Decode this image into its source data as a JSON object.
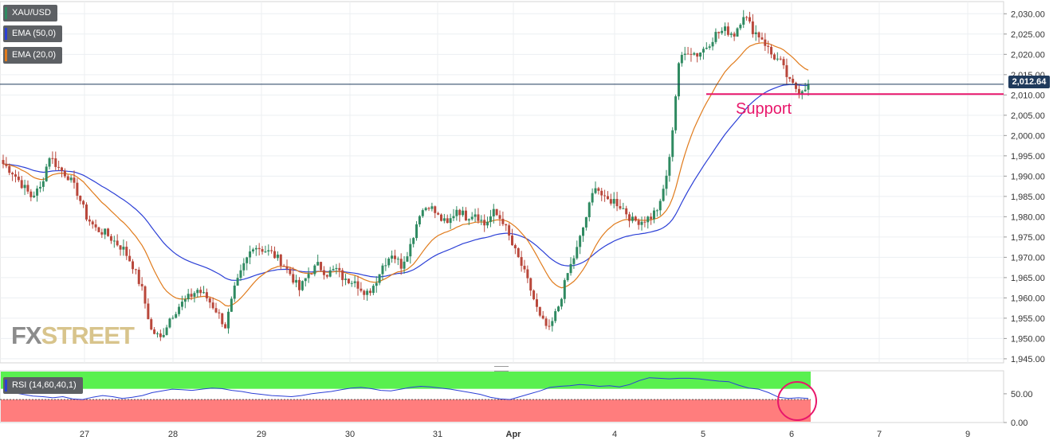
{
  "chart_data": [
    {
      "type": "candlestick",
      "symbol": "XAU/USD",
      "indicators": [
        {
          "name": "EMA (50,0)",
          "color": "#2b3fd6"
        },
        {
          "name": "EMA (20,0)",
          "color": "#e07b1c"
        }
      ],
      "x_ticks": [
        "27",
        "28",
        "29",
        "30",
        "31",
        "Apr",
        "4",
        "5",
        "6",
        "7",
        "9"
      ],
      "y_ticks": [
        "2,030.00",
        "2,025.00",
        "2,020.00",
        "2,015.00",
        "2,010.00",
        "2,005.00",
        "2,000.00",
        "1,995.00",
        "1,990.00",
        "1,985.00",
        "1,980.00",
        "1,975.00",
        "1,970.00",
        "1,965.00",
        "1,960.00",
        "1,955.00",
        "1,950.00",
        "1,945.00"
      ],
      "ylim": [
        1944,
        2033
      ],
      "last_price": "2,012.64",
      "support_level": 2010.2,
      "support_label": "Support",
      "grid": true,
      "close_path": [
        [
          0,
          1993
        ],
        [
          1,
          1991
        ],
        [
          2,
          1988
        ],
        [
          3,
          1985
        ],
        [
          4,
          1987
        ],
        [
          5,
          1995
        ],
        [
          6,
          1992
        ],
        [
          7,
          1990
        ],
        [
          8,
          1986
        ],
        [
          9,
          1980
        ],
        [
          10,
          1977
        ],
        [
          11,
          1976
        ],
        [
          12,
          1974
        ],
        [
          13,
          1972
        ],
        [
          14,
          1968
        ],
        [
          15,
          1962
        ],
        [
          16,
          1952
        ],
        [
          17,
          1950
        ],
        [
          18,
          1955
        ],
        [
          19,
          1958
        ],
        [
          20,
          1960
        ],
        [
          21,
          1962
        ],
        [
          22,
          1960
        ],
        [
          23,
          1957
        ],
        [
          24,
          1953
        ],
        [
          25,
          1962
        ],
        [
          26,
          1968
        ],
        [
          27,
          1973
        ],
        [
          28,
          1972
        ],
        [
          29,
          1971
        ],
        [
          30,
          1969
        ],
        [
          31,
          1966
        ],
        [
          32,
          1962
        ],
        [
          33,
          1966
        ],
        [
          34,
          1968
        ],
        [
          35,
          1966
        ],
        [
          36,
          1967
        ],
        [
          37,
          1964
        ],
        [
          38,
          1965
        ],
        [
          39,
          1960
        ],
        [
          40,
          1963
        ],
        [
          41,
          1968
        ],
        [
          42,
          1971
        ],
        [
          43,
          1968
        ],
        [
          44,
          1973
        ],
        [
          45,
          1981
        ],
        [
          46,
          1983
        ],
        [
          47,
          1980
        ],
        [
          48,
          1978
        ],
        [
          49,
          1982
        ],
        [
          50,
          1980
        ],
        [
          51,
          1981
        ],
        [
          52,
          1978
        ],
        [
          53,
          1981
        ],
        [
          54,
          1979
        ],
        [
          55,
          1973
        ],
        [
          56,
          1968
        ],
        [
          57,
          1962
        ],
        [
          58,
          1955
        ],
        [
          59,
          1952
        ],
        [
          60,
          1958
        ],
        [
          61,
          1966
        ],
        [
          62,
          1972
        ],
        [
          63,
          1980
        ],
        [
          64,
          1988
        ],
        [
          65,
          1984
        ],
        [
          66,
          1984
        ],
        [
          67,
          1982
        ],
        [
          68,
          1979
        ],
        [
          69,
          1979
        ],
        [
          70,
          1980
        ],
        [
          71,
          1983
        ],
        [
          72,
          1994
        ],
        [
          73,
          2018
        ],
        [
          74,
          2021
        ],
        [
          75,
          2020
        ],
        [
          76,
          2022
        ],
        [
          77,
          2025
        ],
        [
          78,
          2026
        ],
        [
          79,
          2025
        ],
        [
          80,
          2030
        ],
        [
          81,
          2026
        ],
        [
          82,
          2024
        ],
        [
          83,
          2020
        ],
        [
          84,
          2018
        ],
        [
          85,
          2013
        ],
        [
          86,
          2011
        ],
        [
          87,
          2012.64
        ]
      ]
    },
    {
      "type": "line",
      "title": "RSI (14,60,40,1)",
      "y_ticks": [
        "50.00",
        "0.00"
      ],
      "upper_band": 60,
      "lower_band": 40,
      "ylim": [
        0,
        90
      ],
      "band_colors": {
        "upper": "#59f04f",
        "lower": "#ff7d7d"
      },
      "line_color": "#2b3fd6",
      "values": [
        55,
        52,
        49,
        46,
        45,
        43,
        45,
        41,
        40,
        44,
        47,
        45,
        42,
        44,
        47,
        52,
        55,
        58,
        57,
        56,
        58,
        60,
        59,
        56,
        54,
        51,
        49,
        47,
        46,
        45,
        47,
        50,
        52,
        54,
        57,
        60,
        61,
        59,
        56,
        55,
        58,
        61,
        63,
        62,
        60,
        58,
        55,
        52,
        49,
        44,
        41,
        40,
        45,
        50,
        55,
        61,
        63,
        64,
        66,
        65,
        63,
        64,
        62,
        66,
        73,
        78,
        77,
        76,
        77,
        77,
        76,
        74,
        72,
        71,
        65,
        60,
        58,
        52,
        44,
        42,
        43,
        42
      ]
    }
  ],
  "watermark": {
    "fx": "FX",
    "street": "STREET"
  },
  "colors": {
    "bull": "#2f8a61",
    "bear": "#b9473b",
    "support": "#e8176b",
    "price_line": "#1f3a5c"
  }
}
